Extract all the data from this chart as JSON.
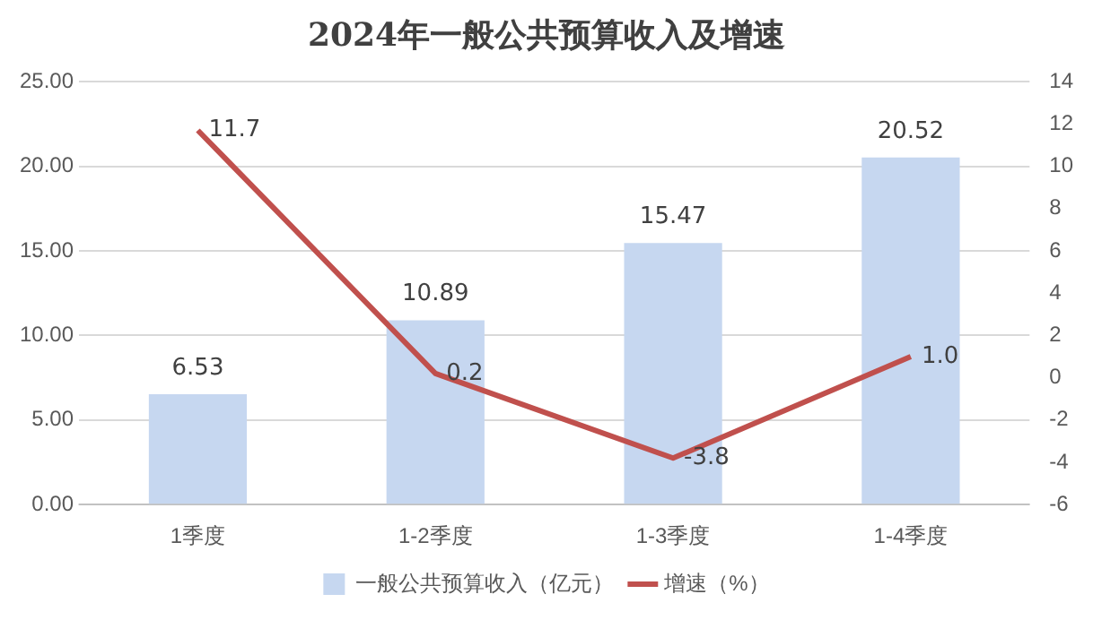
{
  "chart_data": {
    "type": "bar",
    "title": "2024年一般公共预算收入及增速",
    "categories": [
      "1季度",
      "1-2季度",
      "1-3季度",
      "1-4季度"
    ],
    "series": [
      {
        "name": "一般公共预算收入（亿元）",
        "color": "#c6d7f0",
        "values": [
          6.53,
          10.89,
          15.47,
          20.52
        ],
        "value_labels": [
          "6.53",
          "10.89",
          "15.47",
          "20.52"
        ]
      },
      {
        "name": "增速（%）",
        "type": "line",
        "axis": "y2",
        "color": "#c0504d",
        "values": [
          11.7,
          0.2,
          -3.8,
          1.0
        ],
        "value_labels": [
          "11.7",
          "0.2",
          "-3.8",
          "1.0"
        ],
        "marker": "none",
        "line_style": "solid"
      }
    ],
    "ylim": [
      0,
      25
    ],
    "yticks": [
      {
        "value": 0,
        "label": "0.00"
      },
      {
        "value": 5,
        "label": "5.00"
      },
      {
        "value": 10,
        "label": "10.00"
      },
      {
        "value": 15,
        "label": "15.00"
      },
      {
        "value": 20,
        "label": "20.00"
      },
      {
        "value": 25,
        "label": "25.00"
      }
    ],
    "y2lim": [
      -6,
      14
    ],
    "y2ticks": [
      -6,
      -4,
      -2,
      0,
      2,
      4,
      6,
      8,
      10,
      12,
      14
    ],
    "grid": "y",
    "legend": "bottom"
  }
}
